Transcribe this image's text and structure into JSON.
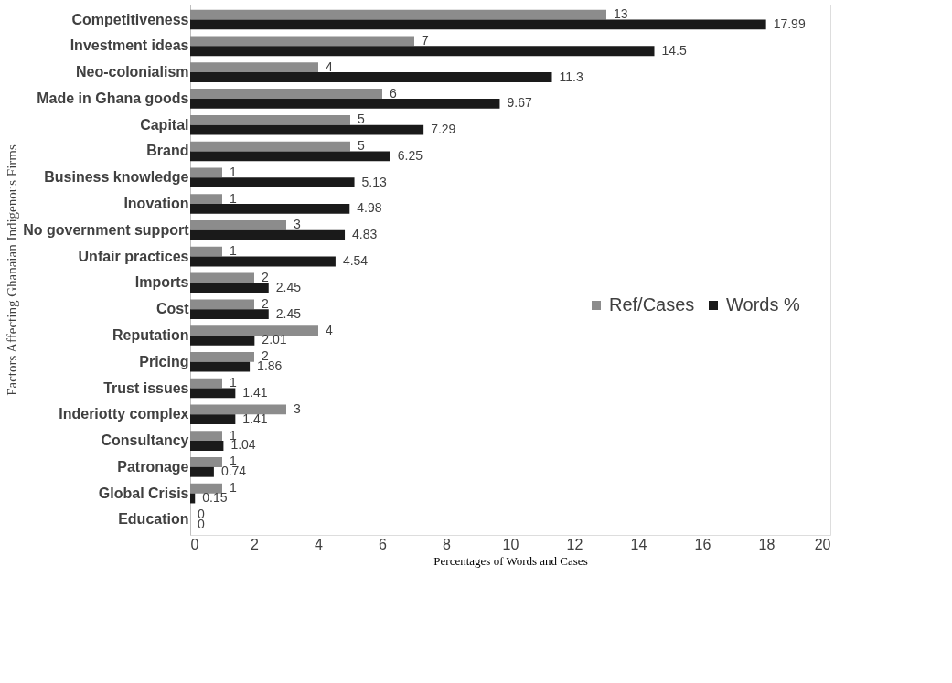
{
  "chart_data": {
    "type": "bar",
    "orientation": "horizontal",
    "ylabel": "Factors Affecting Ghanaian Indigenous Firms",
    "xlabel": "Percentages of Words and Cases",
    "categories": [
      "Competitiveness",
      "Investment ideas",
      "Neo-colonialism",
      "Made in Ghana goods",
      "Capital",
      "Brand",
      "Business knowledge",
      "Inovation",
      "No government support",
      "Unfair practices",
      "Imports",
      "Cost",
      "Reputation",
      "Pricing",
      "Trust issues",
      "Inderiotty complex",
      "Consultancy",
      "Patronage",
      "Global Crisis",
      "Education"
    ],
    "series": [
      {
        "name": "Ref/Cases",
        "color": "#8c8c8c",
        "values": [
          13,
          7,
          4,
          6,
          5,
          5,
          1,
          1,
          3,
          1,
          2,
          2,
          4,
          2,
          1,
          3,
          1,
          1,
          1,
          0
        ]
      },
      {
        "name": "Words %",
        "color": "#1a1a1a",
        "values": [
          17.99,
          14.5,
          11.3,
          9.67,
          7.29,
          6.25,
          5.13,
          4.98,
          4.83,
          4.54,
          2.45,
          2.45,
          2.01,
          1.86,
          1.41,
          1.41,
          1.04,
          0.74,
          0.15,
          0
        ]
      }
    ],
    "xlim": [
      0,
      20
    ],
    "xticks": [
      0,
      2,
      4,
      6,
      8,
      10,
      12,
      14,
      16,
      18,
      20
    ],
    "data_labels": true,
    "legend": "right",
    "grid": false
  }
}
